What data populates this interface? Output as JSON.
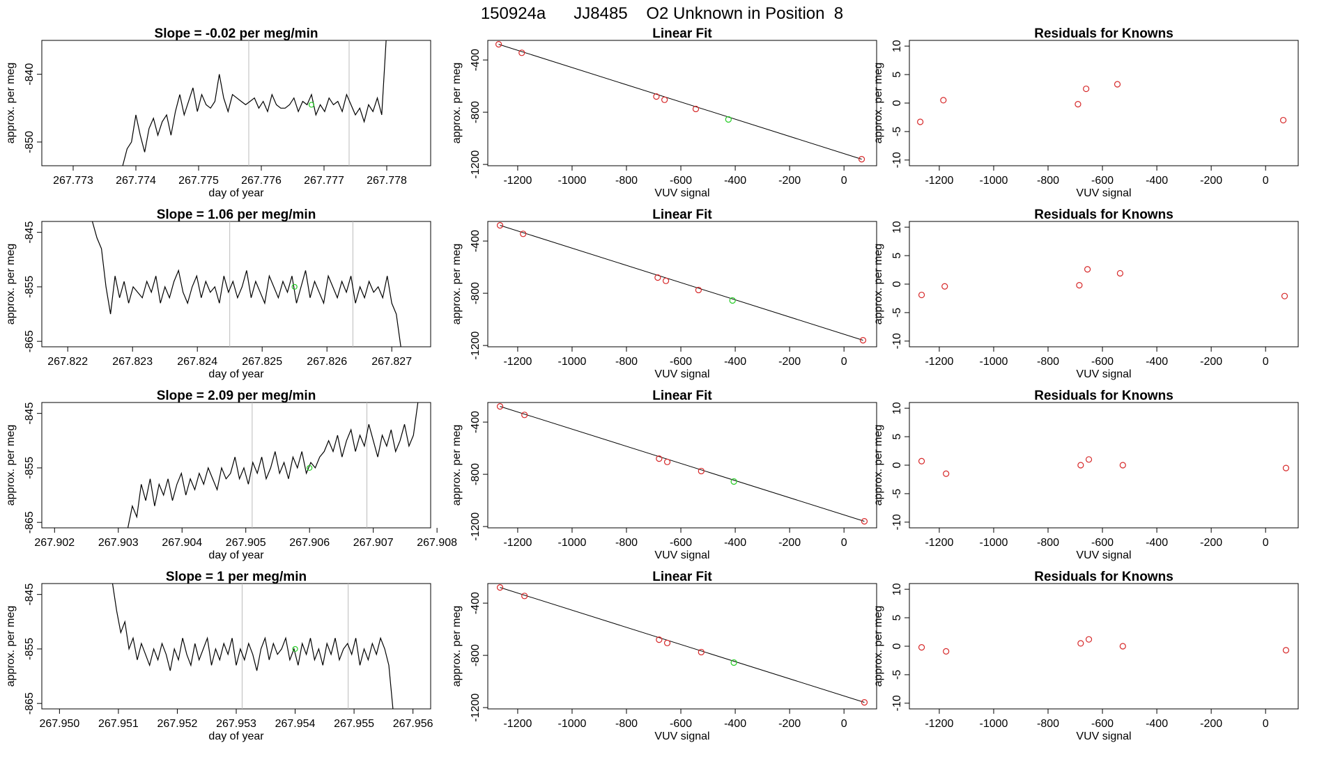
{
  "page_title": "150924a      JJ8485    O2 Unknown in Position  8",
  "chart_data": [
    {
      "type": "line",
      "title": "Slope =  -0.02  per meg/min",
      "xlabel": "day of year",
      "ylabel": "approx. per meg",
      "xlim": [
        267.7725,
        267.7787
      ],
      "ylim": [
        -853.5,
        -835
      ],
      "xticks": [
        "267.773",
        "267.774",
        "267.775",
        "267.776",
        "267.777",
        "267.778"
      ],
      "yticks": [
        "-840",
        "-850"
      ],
      "vlines": [
        267.7758,
        267.7774
      ],
      "x": [
        267.77379,
        267.77386,
        267.77393,
        267.774,
        267.77407,
        267.77414,
        267.77421,
        267.77428,
        267.77435,
        267.77442,
        267.77449,
        267.77456,
        267.77463,
        267.7747,
        267.77477,
        267.77484,
        267.77491,
        267.77498,
        267.77505,
        267.77512,
        267.77519,
        267.77526,
        267.77533,
        267.7754,
        267.77547,
        267.77554,
        267.77561,
        267.77568,
        267.77575,
        267.77582,
        267.77589,
        267.77596,
        267.77603,
        267.7761,
        267.77617,
        267.77624,
        267.77631,
        267.77638,
        267.77645,
        267.77652,
        267.77659,
        267.77666,
        267.77673,
        267.7768,
        267.77687,
        267.77694,
        267.77701,
        267.77708,
        267.77715,
        267.77722,
        267.77729,
        267.77736,
        267.77743,
        267.7775,
        267.77757,
        267.77764,
        267.77771,
        267.77778,
        267.77785,
        267.77792,
        267.77799
      ],
      "y": [
        -853.5,
        -851.0,
        -850.0,
        -846.0,
        -849.0,
        -851.5,
        -848.0,
        -846.5,
        -849.0,
        -847.0,
        -846.0,
        -849.0,
        -845.5,
        -843.0,
        -846.0,
        -844.0,
        -842.0,
        -845.5,
        -843.0,
        -844.5,
        -845.0,
        -844.0,
        -840.0,
        -843.5,
        -845.5,
        -843.0,
        -843.5,
        -844.0,
        -844.5,
        -844.0,
        -843.5,
        -845.0,
        -844.0,
        -845.5,
        -843.0,
        -844.5,
        -845.0,
        -845.0,
        -844.5,
        -843.5,
        -845.5,
        -844.0,
        -844.5,
        -843.0,
        -846.0,
        -844.5,
        -845.5,
        -843.5,
        -844.5,
        -844.0,
        -845.5,
        -843.0,
        -844.5,
        -846.0,
        -845.0,
        -847.0,
        -844.5,
        -845.5,
        -843.5,
        -846.0,
        -835.0
      ],
      "marker": {
        "x": 267.7768,
        "y": -844.5
      }
    },
    {
      "type": "scatter",
      "title": "Linear Fit",
      "xlabel": "VUV signal",
      "ylabel": "approx. per meg",
      "xlim": [
        -1310,
        120
      ],
      "ylim": [
        -1210,
        -250
      ],
      "xticks": [
        -1200,
        -1000,
        -800,
        -600,
        -400,
        -200,
        0
      ],
      "yticks": [
        -400,
        -800,
        -1200
      ],
      "x": [
        -1270,
        -1185,
        -690,
        -660,
        -545,
        -425,
        65
      ],
      "y": [
        -280,
        -345,
        -680,
        -705,
        -775,
        -855,
        -1160
      ],
      "point_colors": [
        "red",
        "red",
        "red",
        "red",
        "red",
        "green",
        "red"
      ],
      "fit": [
        [
          -1270,
          -280
        ],
        [
          65,
          -1160
        ]
      ]
    },
    {
      "type": "scatter",
      "title": "Residuals for Knowns",
      "xlabel": "VUV signal",
      "ylabel": "approx. per meg",
      "xlim": [
        -1310,
        120
      ],
      "ylim": [
        -11,
        11
      ],
      "xticks": [
        -1200,
        -1000,
        -800,
        -600,
        -400,
        -200,
        0
      ],
      "yticks": [
        10,
        5,
        0,
        -5,
        -10
      ],
      "x": [
        -1270,
        -1185,
        -690,
        -660,
        -545,
        65
      ],
      "y": [
        -3.3,
        0.5,
        -0.2,
        2.5,
        3.3,
        -3.0
      ]
    },
    {
      "type": "line",
      "title": "Slope =  1.06  per meg/min",
      "xlabel": "day of year",
      "ylabel": "approx. per meg",
      "xlim": [
        267.8216,
        267.8276
      ],
      "ylim": [
        -866,
        -843
      ],
      "xticks": [
        "267.822",
        "267.823",
        "267.824",
        "267.825",
        "267.826",
        "267.827"
      ],
      "yticks": [
        "-845",
        "-855",
        "-865"
      ],
      "vlines": [
        267.8245,
        267.8264
      ],
      "x": [
        267.82238,
        267.82245,
        267.82252,
        267.82259,
        267.82266,
        267.82273,
        267.8228,
        267.82287,
        267.82294,
        267.82301,
        267.82308,
        267.82315,
        267.82322,
        267.82329,
        267.82336,
        267.82343,
        267.8235,
        267.82357,
        267.82364,
        267.82371,
        267.82378,
        267.82385,
        267.82392,
        267.82399,
        267.82406,
        267.82413,
        267.8242,
        267.82427,
        267.82434,
        267.82441,
        267.82448,
        267.82455,
        267.82462,
        267.82469,
        267.82476,
        267.82483,
        267.8249,
        267.82497,
        267.82504,
        267.82511,
        267.82518,
        267.82525,
        267.82532,
        267.82539,
        267.82546,
        267.82553,
        267.8256,
        267.82567,
        267.82574,
        267.82581,
        267.82588,
        267.82595,
        267.82602,
        267.82609,
        267.82616,
        267.82623,
        267.8263,
        267.82637,
        267.82644,
        267.82651,
        267.82658,
        267.82665,
        267.82672,
        267.82679,
        267.82686,
        267.82693,
        267.827,
        267.82707,
        267.82714
      ],
      "y": [
        -843,
        -846,
        -848,
        -855,
        -860,
        -853,
        -857,
        -854,
        -858,
        -855,
        -856,
        -857,
        -854,
        -856,
        -853,
        -858,
        -855,
        -857,
        -854,
        -852,
        -856,
        -858,
        -855,
        -853,
        -857,
        -854,
        -856,
        -855,
        -858,
        -853,
        -856,
        -854,
        -857,
        -855,
        -852,
        -857,
        -854,
        -856,
        -858,
        -853,
        -855,
        -857,
        -854,
        -856,
        -853,
        -858,
        -855,
        -852,
        -857,
        -854,
        -856,
        -858,
        -853,
        -855,
        -857,
        -854,
        -856,
        -853,
        -858,
        -855,
        -857,
        -854,
        -856,
        -855,
        -857,
        -853,
        -858,
        -860,
        -866
      ],
      "marker": {
        "x": 267.8255,
        "y": -855
      }
    },
    {
      "type": "scatter",
      "title": "Linear Fit",
      "xlabel": "VUV signal",
      "ylabel": "approx. per meg",
      "xlim": [
        -1310,
        120
      ],
      "ylim": [
        -1210,
        -250
      ],
      "xticks": [
        -1200,
        -1000,
        -800,
        -600,
        -400,
        -200,
        0
      ],
      "yticks": [
        -400,
        -800,
        -1200
      ],
      "x": [
        -1265,
        -1180,
        -685,
        -655,
        -535,
        -410,
        70
      ],
      "y": [
        -280,
        -345,
        -680,
        -705,
        -775,
        -855,
        -1160
      ],
      "point_colors": [
        "red",
        "red",
        "red",
        "red",
        "red",
        "green",
        "red"
      ],
      "fit": [
        [
          -1265,
          -280
        ],
        [
          70,
          -1160
        ]
      ]
    },
    {
      "type": "scatter",
      "title": "Residuals for Knowns",
      "xlabel": "VUV signal",
      "ylabel": "approx. per meg",
      "xlim": [
        -1310,
        120
      ],
      "ylim": [
        -11,
        11
      ],
      "xticks": [
        -1200,
        -1000,
        -800,
        -600,
        -400,
        -200,
        0
      ],
      "yticks": [
        10,
        5,
        0,
        -5,
        -10
      ],
      "x": [
        -1265,
        -1180,
        -685,
        -655,
        -535,
        70
      ],
      "y": [
        -1.9,
        -0.4,
        -0.2,
        2.6,
        1.9,
        -2.1
      ]
    },
    {
      "type": "line",
      "title": "Slope =  2.09  per meg/min",
      "xlabel": "day of year",
      "ylabel": "approx. per meg",
      "xlim": [
        267.9018,
        267.9079
      ],
      "ylim": [
        -866,
        -843
      ],
      "xticks": [
        "267.902",
        "267.903",
        "267.904",
        "267.905",
        "267.906",
        "267.907",
        "267.908"
      ],
      "yticks": [
        "-845",
        "-855",
        "-865"
      ],
      "vlines": [
        267.9051,
        267.9069
      ],
      "x": [
        267.90315,
        267.90322,
        267.90329,
        267.90336,
        267.90343,
        267.9035,
        267.90357,
        267.90364,
        267.90371,
        267.90378,
        267.90385,
        267.90392,
        267.90399,
        267.90406,
        267.90413,
        267.9042,
        267.90427,
        267.90434,
        267.90441,
        267.90448,
        267.90455,
        267.90462,
        267.90469,
        267.90476,
        267.90483,
        267.9049,
        267.90497,
        267.90504,
        267.90511,
        267.90518,
        267.90525,
        267.90532,
        267.90539,
        267.90546,
        267.90553,
        267.9056,
        267.90567,
        267.90574,
        267.90581,
        267.90588,
        267.90595,
        267.90602,
        267.90609,
        267.90616,
        267.90623,
        267.9063,
        267.90637,
        267.90644,
        267.90651,
        267.90658,
        267.90665,
        267.90672,
        267.90679,
        267.90686,
        267.90693,
        267.907,
        267.90707,
        267.90714,
        267.90721,
        267.90728,
        267.90735,
        267.90742,
        267.90749,
        267.90756,
        267.90763,
        267.9077
      ],
      "y": [
        -866,
        -862,
        -864,
        -858,
        -861,
        -857,
        -862,
        -858,
        -860,
        -857,
        -861,
        -858,
        -856,
        -860,
        -857,
        -859,
        -856,
        -858,
        -855,
        -857,
        -859,
        -855,
        -857,
        -856,
        -853,
        -857,
        -855,
        -858,
        -854,
        -856,
        -853,
        -857,
        -855,
        -852,
        -856,
        -854,
        -857,
        -853,
        -855,
        -852,
        -856,
        -854,
        -855,
        -853,
        -852,
        -850,
        -852,
        -849,
        -853,
        -850,
        -848,
        -852,
        -849,
        -851,
        -847,
        -850,
        -853,
        -849,
        -851,
        -848,
        -852,
        -850,
        -847,
        -851,
        -849,
        -843
      ],
      "marker": {
        "x": 267.906,
        "y": -855
      }
    },
    {
      "type": "scatter",
      "title": "Linear Fit",
      "xlabel": "VUV signal",
      "ylabel": "approx. per meg",
      "xlim": [
        -1310,
        120
      ],
      "ylim": [
        -1210,
        -250
      ],
      "xticks": [
        -1200,
        -1000,
        -800,
        -600,
        -400,
        -200,
        0
      ],
      "yticks": [
        -400,
        -800,
        -1200
      ],
      "x": [
        -1265,
        -1175,
        -680,
        -650,
        -525,
        -405,
        75
      ],
      "y": [
        -280,
        -345,
        -680,
        -705,
        -775,
        -855,
        -1160
      ],
      "point_colors": [
        "red",
        "red",
        "red",
        "red",
        "red",
        "green",
        "red"
      ],
      "fit": [
        [
          -1265,
          -280
        ],
        [
          75,
          -1160
        ]
      ]
    },
    {
      "type": "scatter",
      "title": "Residuals for Knowns",
      "xlabel": "VUV signal",
      "ylabel": "approx. per meg",
      "xlim": [
        -1310,
        120
      ],
      "ylim": [
        -11,
        11
      ],
      "xticks": [
        -1200,
        -1000,
        -800,
        -600,
        -400,
        -200,
        0
      ],
      "yticks": [
        10,
        5,
        0,
        -5,
        -10
      ],
      "x": [
        -1265,
        -1175,
        -680,
        -650,
        -525,
        75
      ],
      "y": [
        0.7,
        -1.5,
        0.0,
        1.0,
        0.0,
        -0.5
      ]
    },
    {
      "type": "line",
      "title": "Slope =  1  per meg/min",
      "xlabel": "day of year",
      "ylabel": "approx. per meg",
      "xlim": [
        267.9497,
        267.9563
      ],
      "ylim": [
        -866,
        -843
      ],
      "xticks": [
        "267.950",
        "267.951",
        "267.952",
        "267.953",
        "267.954",
        "267.955",
        "267.956"
      ],
      "yticks": [
        "-845",
        "-855",
        "-865"
      ],
      "vlines": [
        267.9531,
        267.9549
      ],
      "x": [
        267.9509,
        267.95097,
        267.95104,
        267.95111,
        267.95118,
        267.95125,
        267.95132,
        267.95139,
        267.95146,
        267.95153,
        267.9516,
        267.95167,
        267.95174,
        267.95181,
        267.95188,
        267.95195,
        267.95202,
        267.95209,
        267.95216,
        267.95223,
        267.9523,
        267.95237,
        267.95244,
        267.95251,
        267.95258,
        267.95265,
        267.95272,
        267.95279,
        267.95286,
        267.95293,
        267.953,
        267.95307,
        267.95314,
        267.95321,
        267.95328,
        267.95335,
        267.95342,
        267.95349,
        267.95356,
        267.95363,
        267.9537,
        267.95377,
        267.95384,
        267.95391,
        267.95398,
        267.95405,
        267.95412,
        267.95419,
        267.95426,
        267.95433,
        267.9544,
        267.95447,
        267.95454,
        267.95461,
        267.95468,
        267.95475,
        267.95482,
        267.95489,
        267.95496,
        267.95503,
        267.9551,
        267.95517,
        267.95524,
        267.95531,
        267.95538,
        267.95545,
        267.95552,
        267.95559,
        267.95566
      ],
      "y": [
        -843,
        -848,
        -852,
        -850,
        -855,
        -853,
        -857,
        -854,
        -856,
        -858,
        -855,
        -857,
        -854,
        -856,
        -859,
        -855,
        -857,
        -853,
        -856,
        -858,
        -854,
        -857,
        -855,
        -853,
        -858,
        -855,
        -857,
        -854,
        -856,
        -853,
        -858,
        -855,
        -857,
        -854,
        -856,
        -859,
        -855,
        -853,
        -857,
        -854,
        -856,
        -855,
        -853,
        -857,
        -855,
        -858,
        -854,
        -856,
        -853,
        -857,
        -855,
        -858,
        -854,
        -856,
        -853,
        -857,
        -855,
        -854,
        -856,
        -853,
        -858,
        -855,
        -857,
        -854,
        -856,
        -853,
        -855,
        -858,
        -866
      ],
      "marker": {
        "x": 267.954,
        "y": -855
      }
    },
    {
      "type": "scatter",
      "title": "Linear Fit",
      "xlabel": "VUV signal",
      "ylabel": "approx. per meg",
      "xlim": [
        -1310,
        120
      ],
      "ylim": [
        -1210,
        -250
      ],
      "xticks": [
        -1200,
        -1000,
        -800,
        -600,
        -400,
        -200,
        0
      ],
      "yticks": [
        -400,
        -800,
        -1200
      ],
      "x": [
        -1265,
        -1175,
        -680,
        -650,
        -525,
        -405,
        75
      ],
      "y": [
        -280,
        -345,
        -680,
        -705,
        -775,
        -855,
        -1160
      ],
      "point_colors": [
        "red",
        "red",
        "red",
        "red",
        "red",
        "green",
        "red"
      ],
      "fit": [
        [
          -1265,
          -280
        ],
        [
          75,
          -1160
        ]
      ]
    },
    {
      "type": "scatter",
      "title": "Residuals for Knowns",
      "xlabel": "VUV signal",
      "ylabel": "approx. per meg",
      "xlim": [
        -1310,
        120
      ],
      "ylim": [
        -11,
        11
      ],
      "xticks": [
        -1200,
        -1000,
        -800,
        -600,
        -400,
        -200,
        0
      ],
      "yticks": [
        10,
        5,
        0,
        -5,
        -10
      ],
      "x": [
        -1265,
        -1175,
        -680,
        -650,
        -525,
        75
      ],
      "y": [
        -0.2,
        -0.9,
        0.5,
        1.2,
        0.0,
        -0.7
      ]
    }
  ],
  "colors": {
    "axis": "#000000",
    "line": "#000000",
    "known_point": "#d62728",
    "unknown_point": "#22cc22",
    "vline": "#bbbbbb"
  }
}
